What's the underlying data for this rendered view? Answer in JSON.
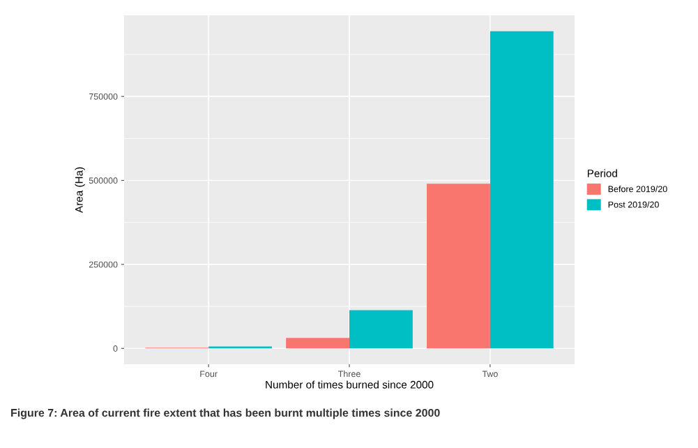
{
  "chart_data": {
    "type": "bar",
    "xlabel": "Number of times burned since 2000",
    "ylabel": "Area (Ha)",
    "legend_title": "Period",
    "categories": [
      "Four",
      "Three",
      "Two"
    ],
    "series": [
      {
        "name": "Before 2019/20",
        "color": "#f8766d",
        "values": [
          2000,
          31000,
          490000
        ]
      },
      {
        "name": "Post 2019/20",
        "color": "#00bfc4",
        "values": [
          6000,
          114000,
          944000
        ]
      }
    ],
    "ylim": [
      -47200,
      991200
    ],
    "yticks": [
      0,
      250000,
      500000,
      750000
    ],
    "grid": true,
    "legend": "right",
    "annotations": [
      "Figure 7: Area of current fire extent that has been burnt multiple times since 2000"
    ]
  }
}
